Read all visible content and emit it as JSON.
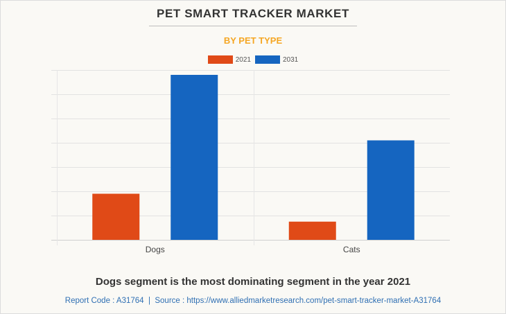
{
  "header": {
    "title": "PET SMART TRACKER MARKET",
    "subtitle": "BY PET TYPE"
  },
  "colors": {
    "series_2021": "#e04a17",
    "series_2031": "#1565c0",
    "subtitle": "#f5a623",
    "source_link": "#2f6fb3"
  },
  "chart_data": {
    "type": "bar",
    "title": "PET SMART TRACKER MARKET",
    "subtitle": "BY PET TYPE",
    "xlabel": "",
    "ylabel": "",
    "categories": [
      "Dogs",
      "Cats"
    ],
    "series": [
      {
        "name": "2021",
        "color": "#e04a17",
        "values": [
          1.9,
          0.75
        ]
      },
      {
        "name": "2031",
        "color": "#1565c0",
        "values": [
          6.8,
          4.1
        ]
      }
    ],
    "value_units": "relative gridline units (no axis tick labels shown)",
    "ylim": [
      0,
      7
    ],
    "gridlines": 7,
    "grid": true,
    "legend_position": "top-center"
  },
  "footer": {
    "insight": "Dogs segment is the most dominating segment in the year 2021",
    "report_code_label": "Report Code : A31764",
    "separator": "  |  ",
    "source_label": "Source : https://www.alliedmarketresearch.com/pet-smart-tracker-market-A31764"
  }
}
